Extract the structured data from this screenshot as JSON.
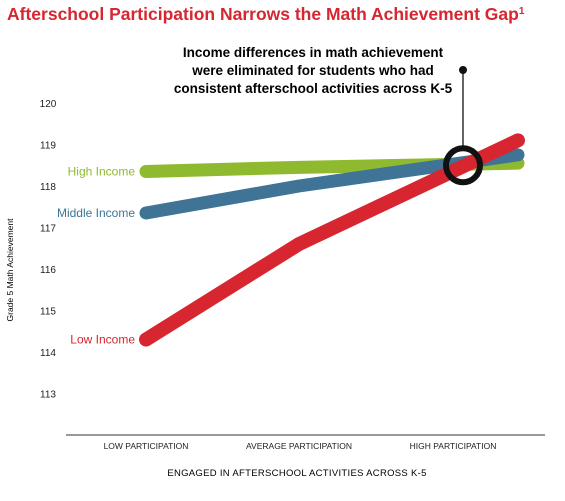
{
  "chart_data": {
    "type": "line",
    "title": "Afterschool Participation Narrows the Math Achievement Gap",
    "title_superscript": "1",
    "annotation_lines": [
      "Income differences in math achievement",
      "were eliminated for students who had",
      "consistent afterschool activities across K-5"
    ],
    "ylabel": "Grade 5 Math Achievement",
    "xlabel": "ENGAGED IN AFTERSCHOOL ACTIVITIES ACROSS K-5",
    "categories": [
      "LOW PARTICIPATION",
      "AVERAGE PARTICIPATION",
      "HIGH PARTICIPATION"
    ],
    "yticks": [
      113,
      114,
      115,
      116,
      117,
      118,
      119,
      120
    ],
    "ylim": [
      112,
      120
    ],
    "series": [
      {
        "name": "High Income",
        "values": [
          118.35,
          118.45,
          118.55
        ],
        "color": "#8fba2f"
      },
      {
        "name": "Middle Income",
        "values": [
          117.35,
          118.0,
          118.75
        ],
        "color": "#3f7496"
      },
      {
        "name": "Low Income",
        "values": [
          114.3,
          116.6,
          119.1
        ],
        "color": "#d72630"
      }
    ],
    "colors": {
      "title": "#d72630",
      "axis": "#333333",
      "annotation": "#111111"
    }
  }
}
